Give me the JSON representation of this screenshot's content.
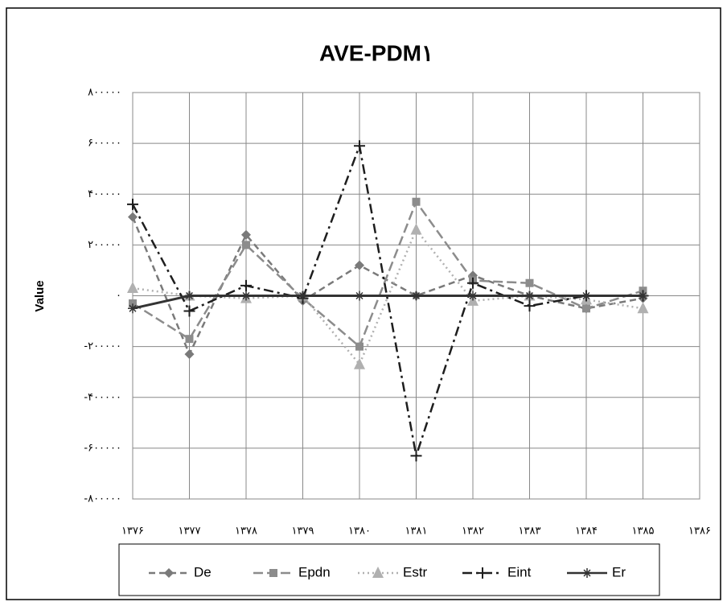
{
  "chart_data": {
    "type": "line",
    "title": "AVE-PDM۱",
    "y_label": "Value",
    "categories": [
      "۱۳۷۶",
      "۱۳۷۷",
      "۱۳۷۸",
      "۱۳۷۹",
      "۱۳۸۰",
      "۱۳۸۱",
      "۱۳۸۲",
      "۱۳۸۳",
      "۱۳۸۴",
      "۱۳۸۵",
      "۱۳۸۶"
    ],
    "series": [
      {
        "name": "De",
        "color": "#7a7a7a",
        "dash": "8 5",
        "marker": "diamond",
        "values": [
          310000,
          -230000,
          240000,
          -20000,
          120000,
          0,
          80000,
          0,
          -50000,
          -10000,
          null
        ]
      },
      {
        "name": "Epdn",
        "color": "#8c8c8c",
        "dash": "12 5",
        "marker": "square",
        "values": [
          -30000,
          -170000,
          200000,
          -10000,
          -200000,
          370000,
          60000,
          50000,
          -50000,
          20000,
          null
        ]
      },
      {
        "name": "Estr",
        "color": "#b0b0b0",
        "dash": "2 4",
        "marker": "triangle",
        "values": [
          30000,
          0,
          -10000,
          0,
          -270000,
          260000,
          -20000,
          0,
          -15000,
          -50000,
          null
        ]
      },
      {
        "name": "Eint",
        "color": "#1e1e1e",
        "dash": "12 5 3 5",
        "marker": "plus",
        "values": [
          360000,
          -60000,
          40000,
          -10000,
          590000,
          -630000,
          50000,
          -40000,
          0,
          0,
          null
        ]
      },
      {
        "name": "Er",
        "color": "#333333",
        "dash": "",
        "marker": "star",
        "values": [
          -50000,
          0,
          0,
          0,
          0,
          0,
          0,
          0,
          0,
          0,
          null
        ]
      }
    ],
    "ylim": [
      -800000,
      800000
    ],
    "yticks": [
      {
        "value": -800000,
        "label": "-۸۰۰۰۰۰"
      },
      {
        "value": -600000,
        "label": "-۶۰۰۰۰۰"
      },
      {
        "value": -400000,
        "label": "-۴۰۰۰۰۰"
      },
      {
        "value": -200000,
        "label": "-۲۰۰۰۰۰"
      },
      {
        "value": 0,
        "label": "۰"
      },
      {
        "value": 200000,
        "label": "۲۰۰۰۰۰"
      },
      {
        "value": 400000,
        "label": "۴۰۰۰۰۰"
      },
      {
        "value": 600000,
        "label": "۶۰۰۰۰۰"
      },
      {
        "value": 800000,
        "label": "۸۰۰۰۰۰"
      }
    ],
    "grid": true,
    "legend": "bottom"
  }
}
